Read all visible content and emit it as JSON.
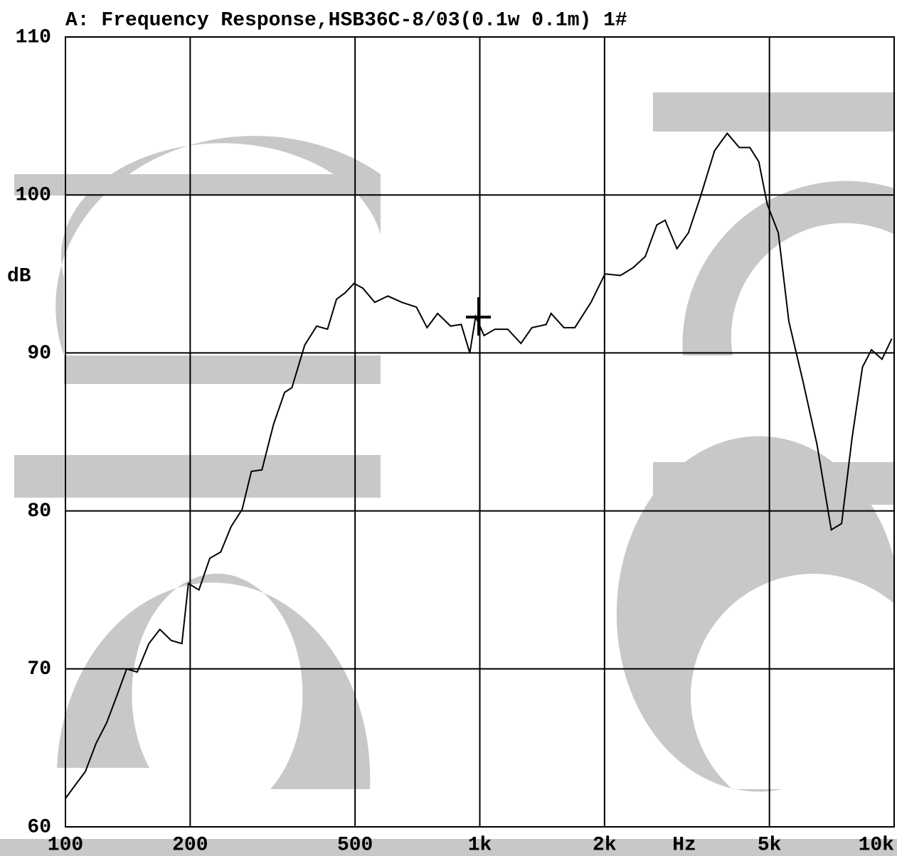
{
  "chart_data": {
    "type": "line",
    "title": "A: Frequency Response,HSB36C-8/03(0.1w 0.1m) 1#",
    "y_label": "dB",
    "x_label": "Hz",
    "xscale": "log",
    "grid": true,
    "color": "#000000",
    "xlim": [
      100,
      10000
    ],
    "ylim": [
      60,
      110
    ],
    "xticks": [
      100,
      200,
      500,
      {
        "value": 1000,
        "label": "1k"
      },
      {
        "value": 2000,
        "label": "2k"
      },
      {
        "value": 5000,
        "label": "5k"
      },
      {
        "value": 10000,
        "label": "10k"
      }
    ],
    "yticks": [
      60,
      70,
      80,
      90,
      100,
      110
    ],
    "x": [
      100,
      105.3,
      111.7,
      118.6,
      125.8,
      133.5,
      140.5,
      149,
      159,
      169,
      180,
      191,
      198,
      210,
      223,
      237,
      251,
      267,
      281,
      298,
      318,
      338,
      352,
      378,
      404,
      429,
      451,
      473,
      497,
      522,
      558,
      600,
      649,
      703,
      746,
      791,
      850,
      902,
      946,
      977,
      1024,
      1088,
      1168,
      1257,
      1336,
      1446,
      1486,
      1596,
      1696,
      1855,
      2005,
      2185,
      2345,
      2508,
      2674,
      2800,
      2991,
      3187,
      3400,
      3686,
      3955,
      4229,
      4485,
      4714,
      4941,
      5253,
      5570,
      6025,
      6514,
      7050,
      7468,
      7913,
      8385,
      8815,
      9348,
      9870
    ],
    "values": [
      61.8,
      62.6,
      63.5,
      65.3,
      66.6,
      68.4,
      70.0,
      69.8,
      71.6,
      72.5,
      71.8,
      71.6,
      75.4,
      75.0,
      77.0,
      77.4,
      79.0,
      80.1,
      82.5,
      82.6,
      85.5,
      87.5,
      87.8,
      90.5,
      91.7,
      91.5,
      93.4,
      93.8,
      94.4,
      94.1,
      93.2,
      93.6,
      93.2,
      92.9,
      91.6,
      92.5,
      91.7,
      91.8,
      90.0,
      92.3,
      91.1,
      91.5,
      91.5,
      90.6,
      91.6,
      91.8,
      92.5,
      91.6,
      91.6,
      93.2,
      95.0,
      94.9,
      95.4,
      96.1,
      98.1,
      98.4,
      96.6,
      97.6,
      99.8,
      102.8,
      103.9,
      103.0,
      103.0,
      102.1,
      99.4,
      97.6,
      92.0,
      88.2,
      84.2,
      78.8,
      79.2,
      84.6,
      89.1,
      90.2,
      89.6,
      90.9
    ]
  }
}
